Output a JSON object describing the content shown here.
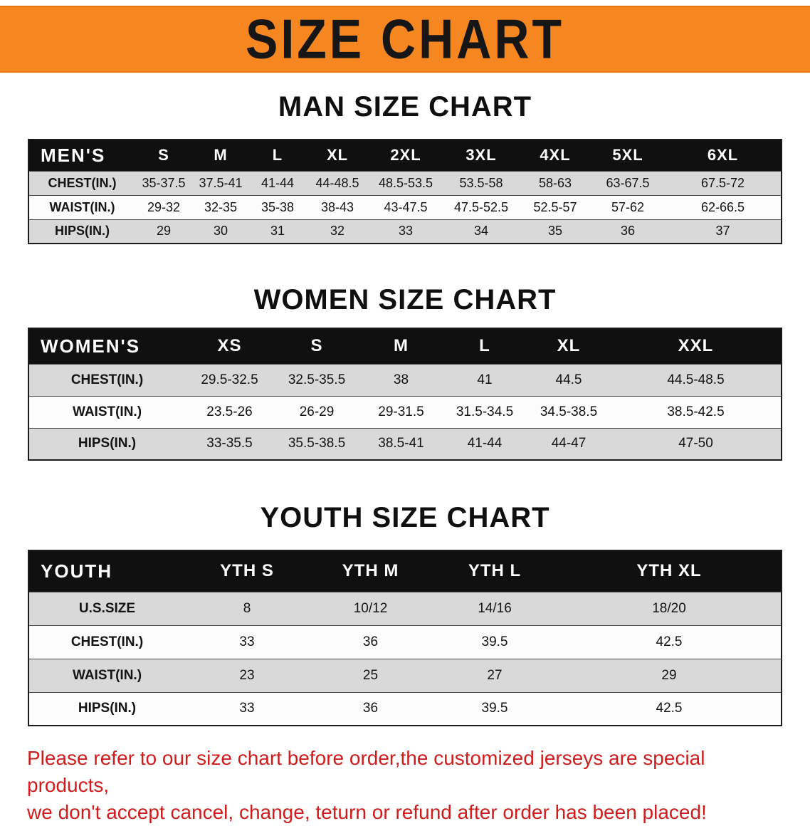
{
  "banner": {
    "title": "SIZE CHART"
  },
  "sections": [
    {
      "heading": "MAN SIZE CHART",
      "table": {
        "header": [
          "MEN'S",
          "S",
          "M",
          "L",
          "XL",
          "2XL",
          "3XL",
          "4XL",
          "5XL",
          "6XL"
        ],
        "rows": [
          [
            "CHEST(IN.)",
            "35-37.5",
            "37.5-41",
            "41-44",
            "44-48.5",
            "48.5-53.5",
            "53.5-58",
            "58-63",
            "63-67.5",
            "67.5-72"
          ],
          [
            "WAIST(IN.)",
            "29-32",
            "32-35",
            "35-38",
            "38-43",
            "43-47.5",
            "47.5-52.5",
            "52.5-57",
            "57-62",
            "62-66.5"
          ],
          [
            "HIPS(IN.)",
            "29",
            "30",
            "31",
            "32",
            "33",
            "34",
            "35",
            "36",
            "37"
          ]
        ]
      }
    },
    {
      "heading": "WOMEN SIZE CHART",
      "table": {
        "header": [
          "WOMEN'S",
          "XS",
          "S",
          "M",
          "L",
          "XL",
          "XXL"
        ],
        "rows": [
          [
            "CHEST(IN.)",
            "29.5-32.5",
            "32.5-35.5",
            "38",
            "41",
            "44.5",
            "44.5-48.5"
          ],
          [
            "WAIST(IN.)",
            "23.5-26",
            "26-29",
            "29-31.5",
            "31.5-34.5",
            "34.5-38.5",
            "38.5-42.5"
          ],
          [
            "HIPS(IN.)",
            "33-35.5",
            "35.5-38.5",
            "38.5-41",
            "41-44",
            "44-47",
            "47-50"
          ]
        ]
      }
    },
    {
      "heading": "YOUTH SIZE CHART",
      "table": {
        "header": [
          "YOUTH",
          "YTH S",
          "YTH M",
          "YTH L",
          "YTH XL"
        ],
        "rows": [
          [
            "U.S.SIZE",
            "8",
            "10/12",
            "14/16",
            "18/20"
          ],
          [
            "CHEST(IN.)",
            "33",
            "36",
            "39.5",
            "42.5"
          ],
          [
            "WAIST(IN.)",
            "23",
            "25",
            "27",
            "29"
          ],
          [
            "HIPS(IN.)",
            "33",
            "36",
            "39.5",
            "42.5"
          ]
        ]
      }
    }
  ],
  "disclaimer": {
    "line1": "Please refer to our size chart before order,the customized jerseys are special products,",
    "line2": "we don't accept cancel, change, teturn or refund after order has been placed!"
  },
  "colors": {
    "banner_orange": "#f6861f",
    "header_black": "#101010",
    "row_gray": "#d9d9d9",
    "disclaimer_red": "#cf1c1c"
  }
}
